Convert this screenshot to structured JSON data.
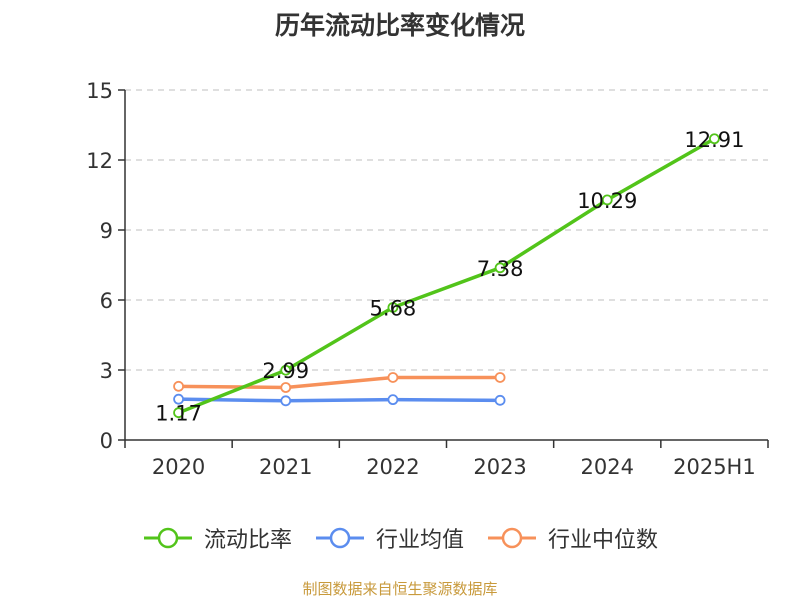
{
  "chart_data": {
    "type": "line",
    "title": "历年流动比率变化情况",
    "categories": [
      "2020",
      "2021",
      "2022",
      "2023",
      "2024",
      "2025H1"
    ],
    "ylim": [
      0,
      15
    ],
    "yticks": [
      0,
      3,
      6,
      9,
      12,
      15
    ],
    "grid": true,
    "legend_position": "bottom",
    "series": [
      {
        "name": "流动比率",
        "color": "#52c41a",
        "values": [
          1.17,
          2.99,
          5.68,
          7.38,
          10.29,
          12.91
        ],
        "labels": [
          "1.17",
          "2.99",
          "5.68",
          "7.38",
          "10.29",
          "12.91"
        ]
      },
      {
        "name": "行业均值",
        "color": "#5b8def",
        "values": [
          1.75,
          1.68,
          1.73,
          1.7,
          null,
          null
        ]
      },
      {
        "name": "行业中位数",
        "color": "#f7915a",
        "values": [
          2.3,
          2.25,
          2.68,
          2.68,
          null,
          null
        ]
      }
    ]
  },
  "source": "制图数据来自恒生聚源数据库"
}
